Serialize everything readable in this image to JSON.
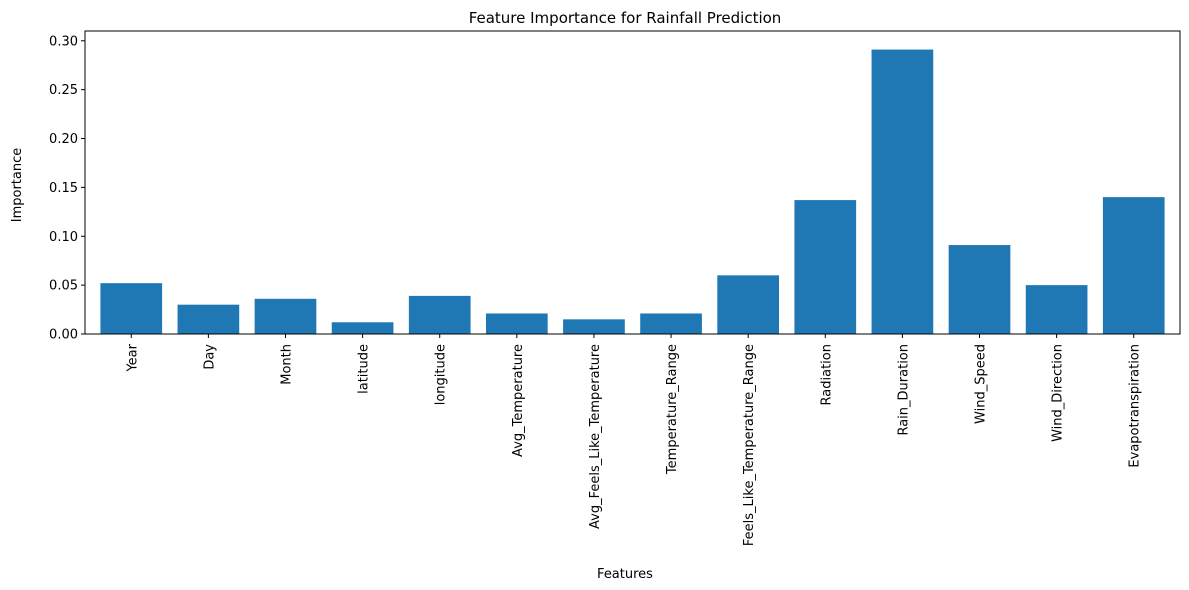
{
  "chart_data": {
    "type": "bar",
    "title": "Feature Importance for Rainfall Prediction",
    "xlabel": "Features",
    "ylabel": "Importance",
    "ylim": [
      0,
      0.31
    ],
    "yticks": [
      "0.00",
      "0.05",
      "0.10",
      "0.15",
      "0.20",
      "0.25",
      "0.30"
    ],
    "ytick_values": [
      0,
      0.05,
      0.1,
      0.15,
      0.2,
      0.25,
      0.3
    ],
    "categories": [
      "Year",
      "Day",
      "Month",
      "latitude",
      "longitude",
      "Avg_Temperature",
      "Avg_Feels_Like_Temperature",
      "Temperature_Range",
      "Feels_Like_Temperature_Range",
      "Radiation",
      "Rain_Duration",
      "Wind_Speed",
      "Wind_Direction",
      "Evapotranspiration"
    ],
    "values": [
      0.052,
      0.03,
      0.036,
      0.012,
      0.039,
      0.021,
      0.015,
      0.021,
      0.06,
      0.137,
      0.291,
      0.091,
      0.05,
      0.14
    ],
    "bar_color": "#1f77b4",
    "grid": false,
    "tick_label_rotation": "vertical"
  }
}
